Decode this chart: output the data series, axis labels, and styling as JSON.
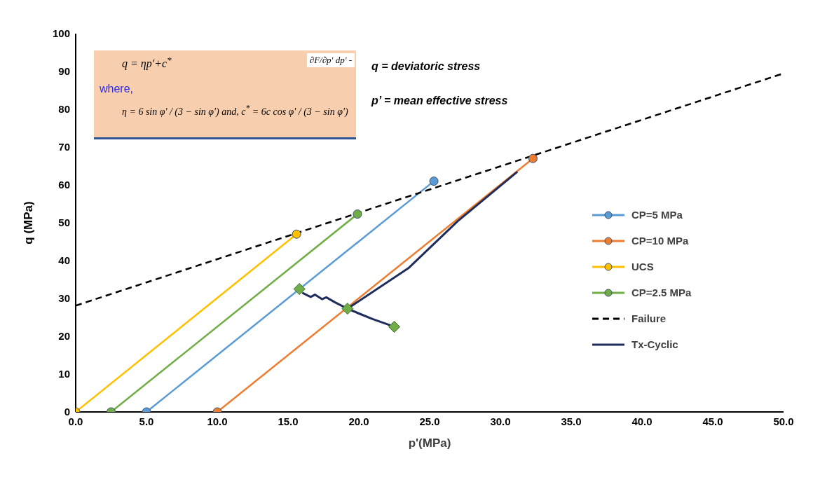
{
  "chart_data": {
    "type": "line",
    "xlabel": "p'(MPa)",
    "ylabel": "q (MPa)",
    "xlim": [
      0,
      50
    ],
    "ylim": [
      0,
      100
    ],
    "xticks": [
      {
        "value": 0,
        "label": "0.0"
      },
      {
        "value": 5,
        "label": "5.0"
      },
      {
        "value": 10,
        "label": "10.0"
      },
      {
        "value": 15,
        "label": "15.0"
      },
      {
        "value": 20,
        "label": "20.0"
      },
      {
        "value": 25,
        "label": "25.0"
      },
      {
        "value": 30,
        "label": "30.0"
      },
      {
        "value": 35,
        "label": "35.0"
      },
      {
        "value": 40,
        "label": "40.0"
      },
      {
        "value": 45,
        "label": "45.0"
      },
      {
        "value": 50,
        "label": "50.0"
      }
    ],
    "yticks": [
      0,
      10,
      20,
      30,
      40,
      50,
      60,
      70,
      80,
      90,
      100
    ],
    "grid": false,
    "legend": "right",
    "line_style": "solid",
    "marker": "circle",
    "series": [
      {
        "name": "CP=5 MPa",
        "color": "#5b9bd5",
        "x": [
          5,
          25.3
        ],
        "values": [
          0,
          61
        ]
      },
      {
        "name": "CP=10 MPa",
        "color": "#ed7d31",
        "x": [
          10,
          32.3
        ],
        "values": [
          0,
          67
        ]
      },
      {
        "name": "UCS",
        "color": "#ffc000",
        "x": [
          0,
          15.6
        ],
        "values": [
          0,
          47
        ]
      },
      {
        "name": "CP=2.5 MPa",
        "color": "#70ad47",
        "x": [
          2.5,
          19.9
        ],
        "values": [
          0,
          52.3
        ]
      },
      {
        "name": "Failure",
        "color": "#000000",
        "x": [
          0,
          50
        ],
        "values": [
          28.1,
          89.5
        ],
        "line_style": "dashed",
        "marker": "none"
      },
      {
        "name": "Tx-Cyclic",
        "color": "#1f2d5c",
        "x": [
          16.0,
          16.6,
          16.9,
          17.4,
          17.7,
          18.3,
          19.2,
          20.0,
          21.0,
          22.3,
          21.0,
          19.2,
          23.5,
          27.0,
          31.2
        ],
        "values": [
          31.5,
          30.4,
          31.0,
          29.8,
          30.3,
          29.0,
          27.3,
          26.0,
          24.5,
          22.8,
          24.5,
          27.3,
          38.0,
          50.5,
          63.5
        ],
        "marker": "none"
      },
      {
        "type": "scatter",
        "color": "#70ad47",
        "x": [
          15.8,
          19.2,
          22.5
        ],
        "values": [
          32.5,
          27.3,
          22.5
        ],
        "marker": "diamond"
      }
    ],
    "annotations": [
      "q = ηp'+c$^{*}$",
      "∂F/∂p' dp' -",
      "where,",
      "η = 6 sin φ' / (3 − sin φ')  and,  c$^{*}$ = 6c cos φ' / (3 − sin φ')",
      "q = deviatoric stress",
      "p’ = mean effective stress"
    ]
  }
}
